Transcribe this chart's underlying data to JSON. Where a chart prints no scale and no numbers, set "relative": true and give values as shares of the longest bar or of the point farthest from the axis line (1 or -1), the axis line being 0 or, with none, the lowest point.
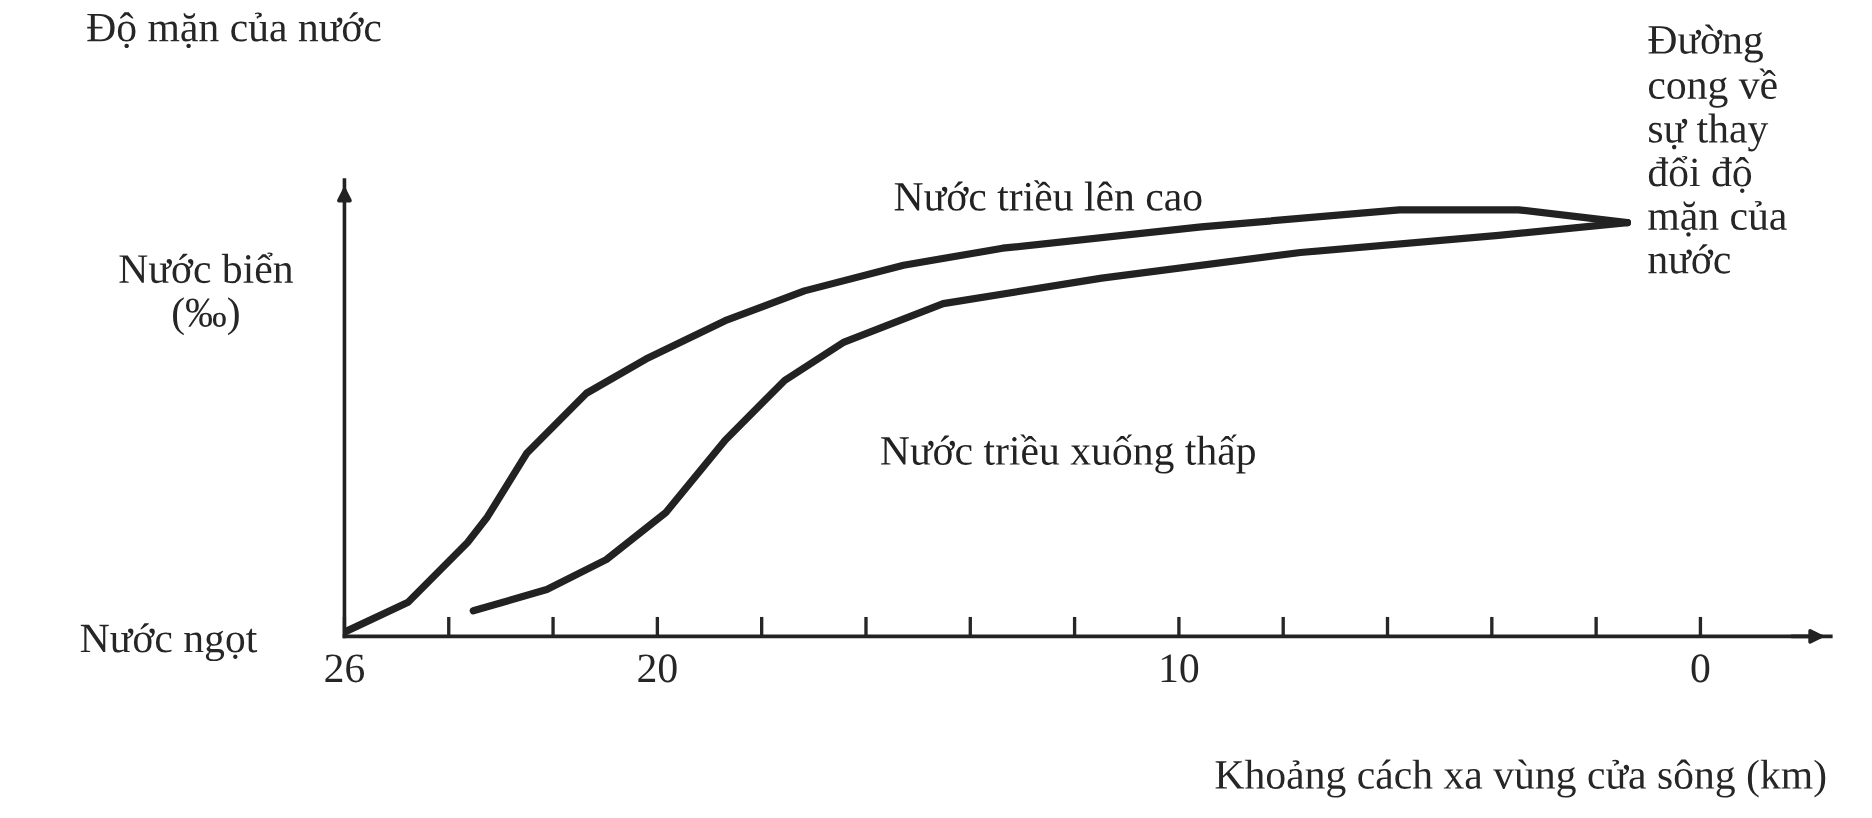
{
  "chart_data": {
    "type": "line",
    "relative": true,
    "ylabel": "Độ mặn của nước",
    "xlabel": "Khoảng cách xa vùng cửa sông (km)",
    "xlim": [
      26,
      -2.5
    ],
    "xticks": [
      26,
      {
        "value": 24,
        "label": null
      },
      {
        "value": 22,
        "label": null
      },
      20,
      {
        "value": 18,
        "label": null
      },
      {
        "value": 16,
        "label": null
      },
      {
        "value": 14,
        "label": null
      },
      {
        "value": 12,
        "label": null
      },
      10,
      {
        "value": 8,
        "label": null
      },
      {
        "value": 6,
        "label": null
      },
      {
        "value": 4,
        "label": null
      },
      {
        "value": 2,
        "label": null
      },
      0
    ],
    "annotations": [
      "Nước biển\n(‰)",
      "Nước ngọt",
      "Đường\ncong về\nsự thay\nđổi độ\nmặn của\nnước"
    ],
    "grid": false,
    "legend": false,
    "marker": "none",
    "line_style": "solid",
    "series": [
      {
        "name": "Nước triều lên cao",
        "color": "#222222",
        "x": [
          26,
          24.78,
          23.64,
          23.26,
          22.5,
          21.36,
          20.22,
          18.7,
          17.18,
          15.28,
          13.38,
          9.57,
          5.77,
          3.49,
          1.4
        ],
        "values": [
          0.01,
          0.08,
          0.22,
          0.28,
          0.43,
          0.57,
          0.65,
          0.74,
          0.81,
          0.87,
          0.91,
          0.96,
          1.0,
          1.0,
          0.97
        ]
      },
      {
        "name": "Nước triều xuống thấp",
        "color": "#222222",
        "x": [
          23.53,
          22.12,
          20.98,
          19.84,
          18.7,
          17.56,
          16.42,
          14.52,
          11.48,
          7.67,
          3.87,
          1.4
        ],
        "values": [
          0.06,
          0.11,
          0.18,
          0.29,
          0.46,
          0.6,
          0.69,
          0.78,
          0.84,
          0.9,
          0.94,
          0.97
        ]
      }
    ]
  }
}
